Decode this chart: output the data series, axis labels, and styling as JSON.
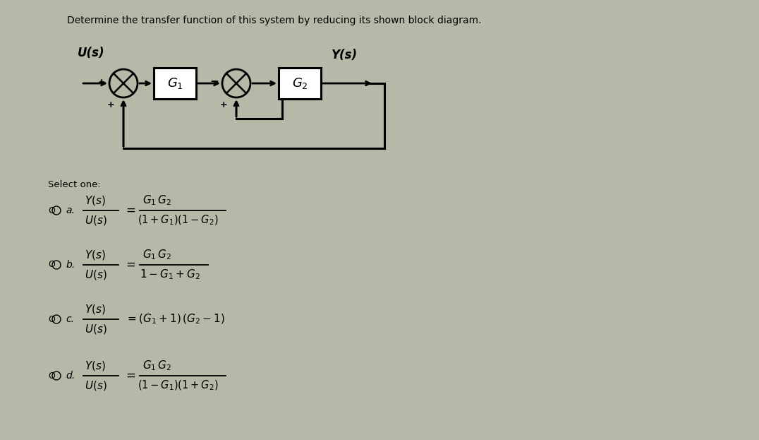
{
  "title": "Determine the transfer function of this system by reducing its shown block diagram.",
  "background_color": "#b8b8a8",
  "text_color": "#000000",
  "select_one": "Select one:",
  "diagram": {
    "U_label": "U(s)",
    "Y_label": "Y(s)",
    "G1_label": "G$_1$",
    "G2_label": "G$_2$"
  },
  "layout": {
    "figw": 10.76,
    "figh": 6.23,
    "dpi": 100
  }
}
